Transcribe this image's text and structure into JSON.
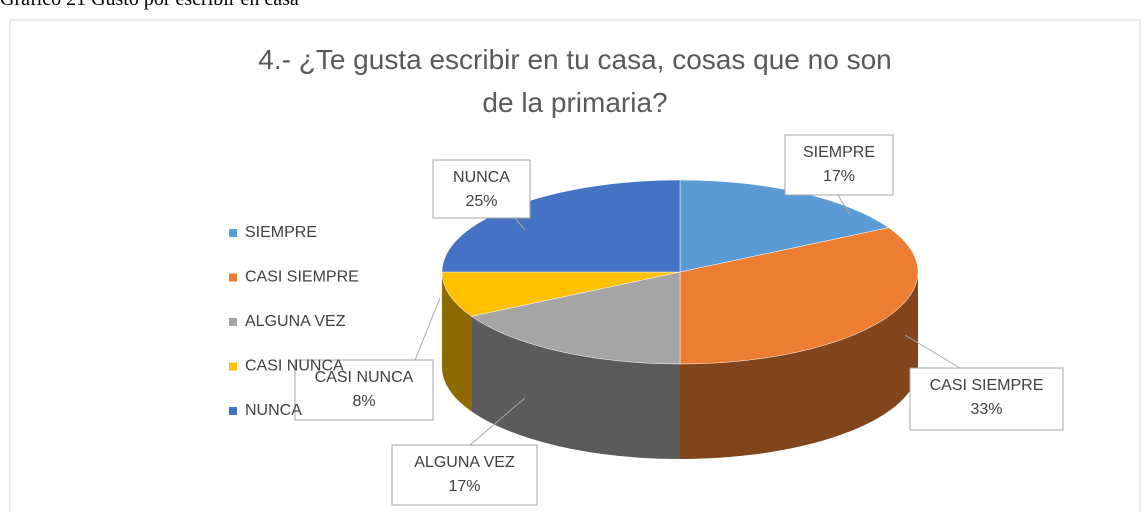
{
  "caption": "Gráfico 21 Gusto por escribir en casa",
  "chart_data": {
    "type": "pie3d",
    "title": "4.- ¿Te gusta escribir en tu casa, cosas que no son de la primaria?",
    "categories": [
      "SIEMPRE",
      "CASI SIEMPRE",
      "ALGUNA VEZ",
      "CASI NUNCA",
      "NUNCA"
    ],
    "values": [
      17,
      33,
      17,
      8,
      25
    ],
    "value_labels": [
      "17%",
      "33%",
      "17%",
      "8%",
      "25%"
    ],
    "colors": [
      "#5b9bd5",
      "#ed7d31",
      "#a5a5a5",
      "#ffc000",
      "#4472c4"
    ],
    "legend": "left"
  }
}
